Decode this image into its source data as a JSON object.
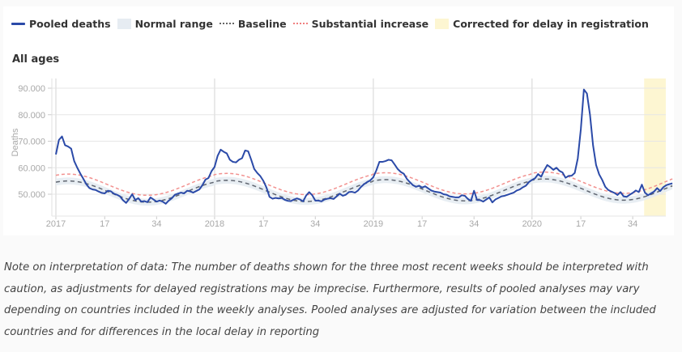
{
  "legend": {
    "items": [
      {
        "label": "Pooled deaths",
        "kind": "line",
        "color": "#2b4aa8"
      },
      {
        "label": "Normal range",
        "kind": "box",
        "color": "#e6ecf2"
      },
      {
        "label": "Baseline",
        "kind": "dash",
        "color": "#666666"
      },
      {
        "label": "Substantial increase",
        "kind": "dash",
        "color": "#f07f7f"
      },
      {
        "label": "Corrected for delay in registration",
        "kind": "box",
        "color": "#fdf6d2"
      }
    ]
  },
  "section_title": "All ages",
  "note": "Note on interpretation of data: The number of deaths shown for the three most recent weeks should be interpreted with caution, as adjustments for delayed registrations may be imprecise. Furthermore, results of pooled analyses may vary depending on countries included in the weekly analyses. Pooled analyses are adjusted for variation between the included countries and for differences in the local delay in reporting",
  "chart_data": {
    "type": "line",
    "title": "All ages",
    "xlabel": "",
    "ylabel": "Deaths",
    "ylim": [
      43000,
      94000
    ],
    "yticks": [
      50000,
      60000,
      70000,
      80000,
      90000
    ],
    "ytick_labels": [
      "50.000",
      "60.000",
      "70.000",
      "80.000",
      "90.000"
    ],
    "x_unit": "ISO week index from 2017 week 1",
    "xticks": [
      {
        "week_index": 0,
        "label": "2017",
        "year_line": true
      },
      {
        "week_index": 16,
        "label": "17",
        "year_line": false
      },
      {
        "week_index": 33,
        "label": "34",
        "year_line": false
      },
      {
        "week_index": 52,
        "label": "2018",
        "year_line": true
      },
      {
        "week_index": 68,
        "label": "17",
        "year_line": false
      },
      {
        "week_index": 85,
        "label": "34",
        "year_line": false
      },
      {
        "week_index": 104,
        "label": "2019",
        "year_line": true
      },
      {
        "week_index": 120,
        "label": "17",
        "year_line": false
      },
      {
        "week_index": 137,
        "label": "34",
        "year_line": false
      },
      {
        "week_index": 156,
        "label": "2020",
        "year_line": true
      },
      {
        "week_index": 172,
        "label": "17",
        "year_line": false
      },
      {
        "week_index": 189,
        "label": "34",
        "year_line": false
      }
    ],
    "grid": true,
    "legend_position": "top",
    "corrected_region_weeks": [
      193,
      197
    ],
    "baseline_model": {
      "mean": 51000,
      "amplitude": 4000,
      "peak_week_of_year": 4,
      "trend_per_year": 250
    },
    "normal_range_halfwidth": 1300,
    "substantial_increase_offset": 2600,
    "series": [
      {
        "name": "Pooled deaths",
        "color": "#2b4aa8",
        "values": [
          65000,
          70500,
          71800,
          68500,
          68000,
          67200,
          62500,
          60000,
          57800,
          55800,
          53700,
          52300,
          51800,
          51600,
          51000,
          50500,
          50300,
          51300,
          51100,
          50200,
          49800,
          49200,
          47700,
          46700,
          48200,
          50000,
          47800,
          48500,
          47200,
          47400,
          47000,
          48800,
          48000,
          47200,
          47600,
          47200,
          46400,
          47600,
          48500,
          49800,
          50200,
          50600,
          50300,
          51300,
          51100,
          50600,
          51200,
          51800,
          53400,
          55500,
          56100,
          58700,
          60300,
          64500,
          66800,
          66000,
          65400,
          63000,
          62200,
          62000,
          63000,
          63600,
          66500,
          66200,
          63000,
          59500,
          58000,
          56800,
          55000,
          52500,
          49000,
          48300,
          48600,
          48400,
          48600,
          47900,
          47500,
          47400,
          48000,
          48400,
          48000,
          47300,
          49500,
          50800,
          49600,
          47600,
          47600,
          47300,
          48000,
          48300,
          48500,
          48200,
          49200,
          50200,
          49400,
          49800,
          50800,
          50900,
          50600,
          51400,
          52800,
          53800,
          54600,
          55200,
          56400,
          59000,
          62200,
          62200,
          62500,
          63000,
          62800,
          61200,
          59500,
          58400,
          57700,
          55800,
          54500,
          53400,
          52800,
          53200,
          52500,
          53000,
          52200,
          51400,
          51000,
          50800,
          50600,
          50000,
          49800,
          49200,
          49000,
          48800,
          48800,
          49600,
          49400,
          48200,
          47500,
          51300,
          47800,
          47800,
          47200,
          48000,
          48800,
          46900,
          48000,
          48600,
          49200,
          49400,
          49800,
          50200,
          50600,
          51400,
          51800,
          52600,
          53200,
          54600,
          55400,
          56000,
          57600,
          56600,
          59000,
          61000,
          60200,
          59200,
          60000,
          58800,
          58200,
          56200,
          56900,
          57000,
          58000,
          63500,
          74500,
          89500,
          88000,
          80000,
          68500,
          61000,
          57500,
          55400,
          52800,
          51600,
          51000,
          50500,
          49700,
          50800,
          49200,
          49000,
          49800,
          50500,
          51400,
          50800,
          53600,
          50600,
          49600,
          50300,
          51000,
          52300,
          51200,
          52600,
          53400,
          53800,
          54100
        ]
      }
    ]
  }
}
